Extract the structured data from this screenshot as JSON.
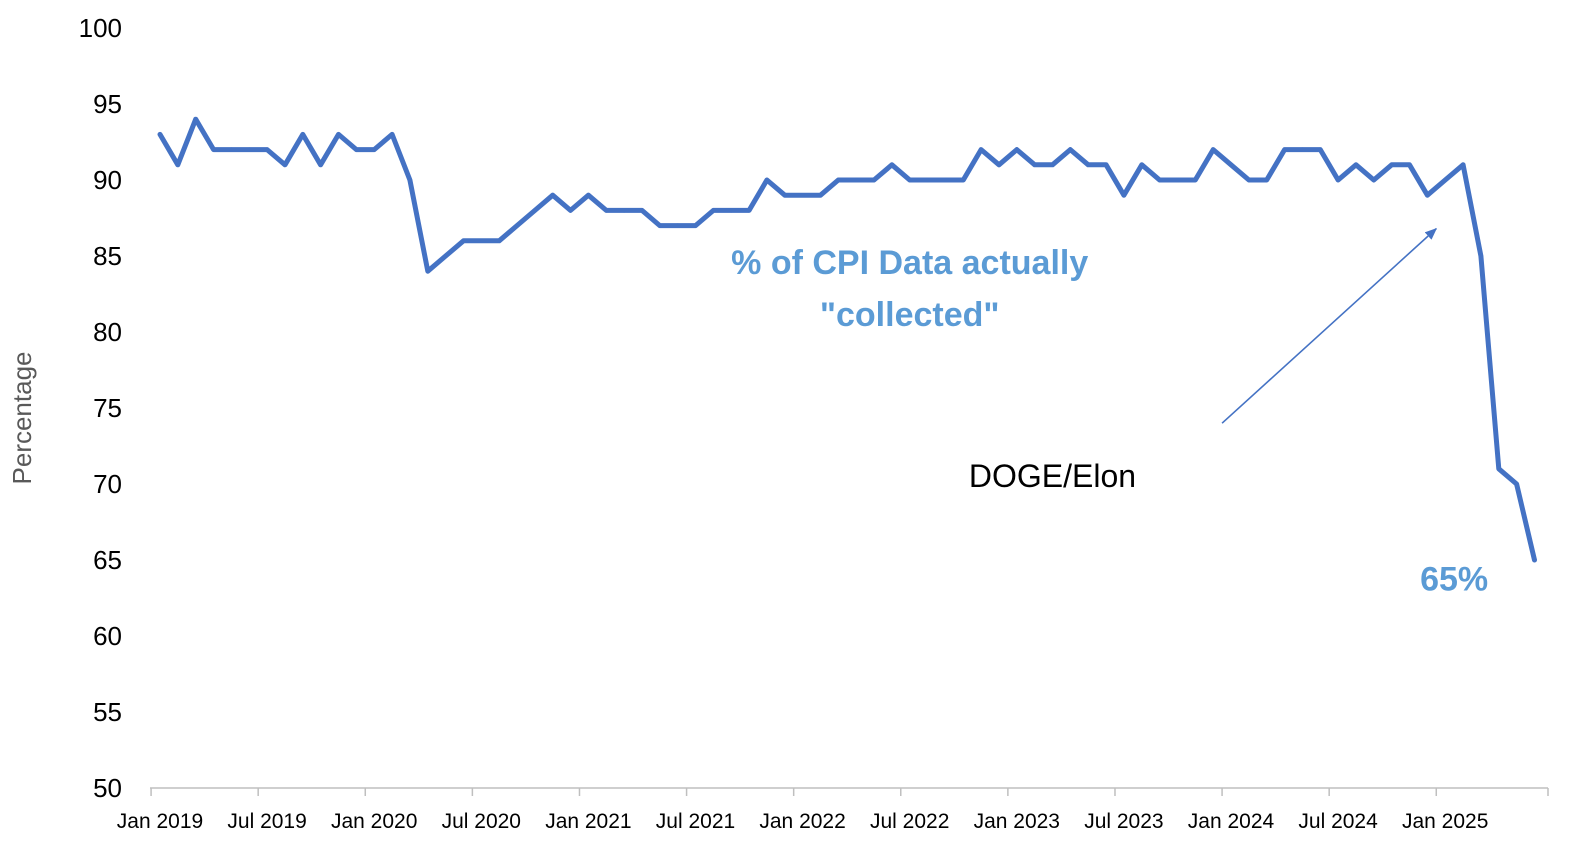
{
  "colors": {
    "series_line": "#4472C4",
    "annotation_blue": "#5B9BD5",
    "axis_line": "#BFBFBF",
    "arrow": "#4472C4"
  },
  "chart_data": {
    "type": "line",
    "title": "",
    "xlabel": "",
    "ylabel": "Percentage",
    "ylim": [
      50,
      100
    ],
    "yticks": [
      50,
      55,
      60,
      65,
      70,
      75,
      80,
      85,
      90,
      95,
      100
    ],
    "grid": false,
    "legend": "none",
    "x_tick_labels": [
      "Jan 2019",
      "Jul 2019",
      "Jan 2020",
      "Jul 2020",
      "Jan 2021",
      "Jul 2021",
      "Jan 2022",
      "Jul 2022",
      "Jan 2023",
      "Jul 2023",
      "Jan 2024",
      "Jul 2024",
      "Jan 2025"
    ],
    "x_start": "Jan 2019",
    "x_unit": "month",
    "series": [
      {
        "name": "% of CPI Data actually \"collected\"",
        "values": [
          93,
          91,
          94,
          92,
          92,
          92,
          92,
          91,
          93,
          91,
          93,
          92,
          92,
          93,
          90,
          84,
          85,
          86,
          86,
          86,
          87,
          88,
          89,
          88,
          89,
          88,
          88,
          88,
          87,
          87,
          87,
          88,
          88,
          88,
          90,
          89,
          89,
          89,
          90,
          90,
          90,
          91,
          90,
          90,
          90,
          90,
          92,
          91,
          92,
          91,
          91,
          92,
          91,
          91,
          89,
          91,
          90,
          90,
          90,
          92,
          91,
          90,
          90,
          92,
          92,
          92,
          90,
          91,
          90,
          91,
          91,
          89,
          90,
          91,
          85,
          71,
          70,
          65
        ]
      }
    ],
    "annotations": [
      {
        "text_lines": [
          "% of CPI Data actually",
          "\"collected\""
        ],
        "style": "blue-bold",
        "anchor_x_month": 42,
        "anchor_y_value": 83.8
      },
      {
        "text": "DOGE/Elon",
        "style": "black",
        "anchor_x_month": 50,
        "anchor_y_value": 69.8
      },
      {
        "text": "65%",
        "style": "blue-bold",
        "anchor_x_month": 72.5,
        "anchor_y_value": 63.0
      }
    ],
    "arrow": {
      "from_month": 59.5,
      "from_value": 74,
      "to_month": 71.5,
      "to_value": 86.8
    }
  }
}
